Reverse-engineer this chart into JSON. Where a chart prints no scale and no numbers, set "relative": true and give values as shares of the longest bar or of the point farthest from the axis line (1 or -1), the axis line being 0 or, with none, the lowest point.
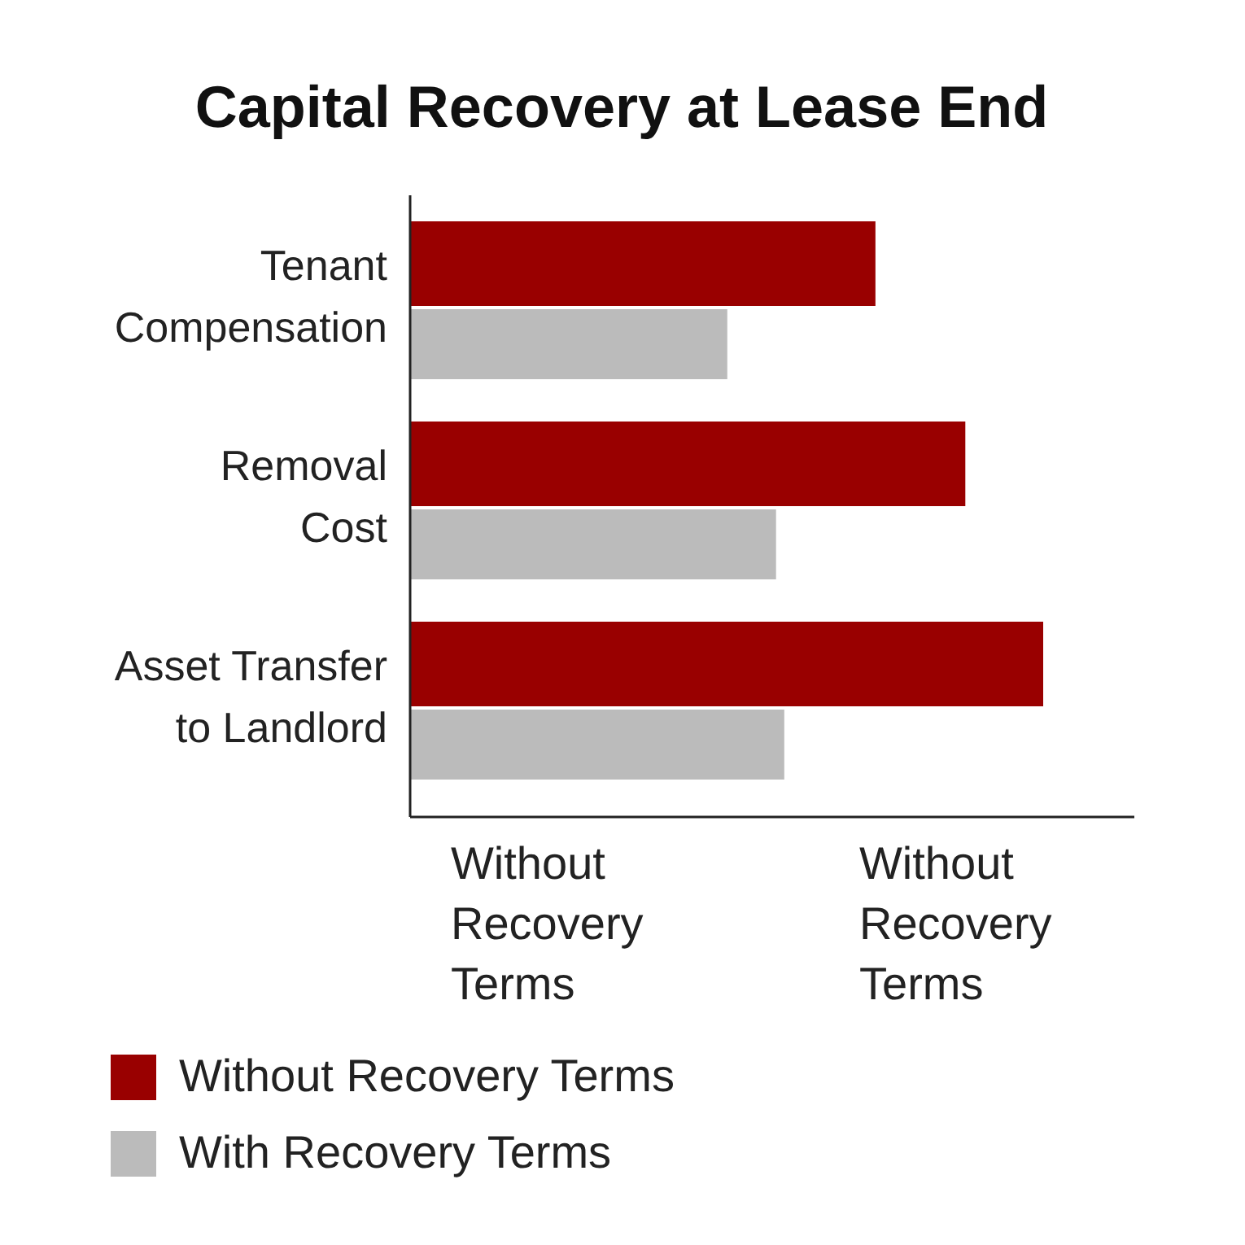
{
  "chart_data": {
    "type": "bar",
    "orientation": "horizontal",
    "relative": true,
    "title": "Capital Recovery at Lease End",
    "categories": [
      "Tenant Compensation",
      "Removal Cost",
      "Asset Transfer to Landlord"
    ],
    "series": [
      {
        "name": "Without Recovery Terms",
        "color": "#990000",
        "values": [
          0.735,
          0.877,
          1
        ]
      },
      {
        "name": "With Recovery Terms",
        "color": "#bbbbbb",
        "values": [
          0.501,
          0.578,
          0.591
        ]
      }
    ],
    "annotations": [
      "Without Recovery Terms",
      "Without Recovery Terms"
    ],
    "legend": "bottom left"
  }
}
